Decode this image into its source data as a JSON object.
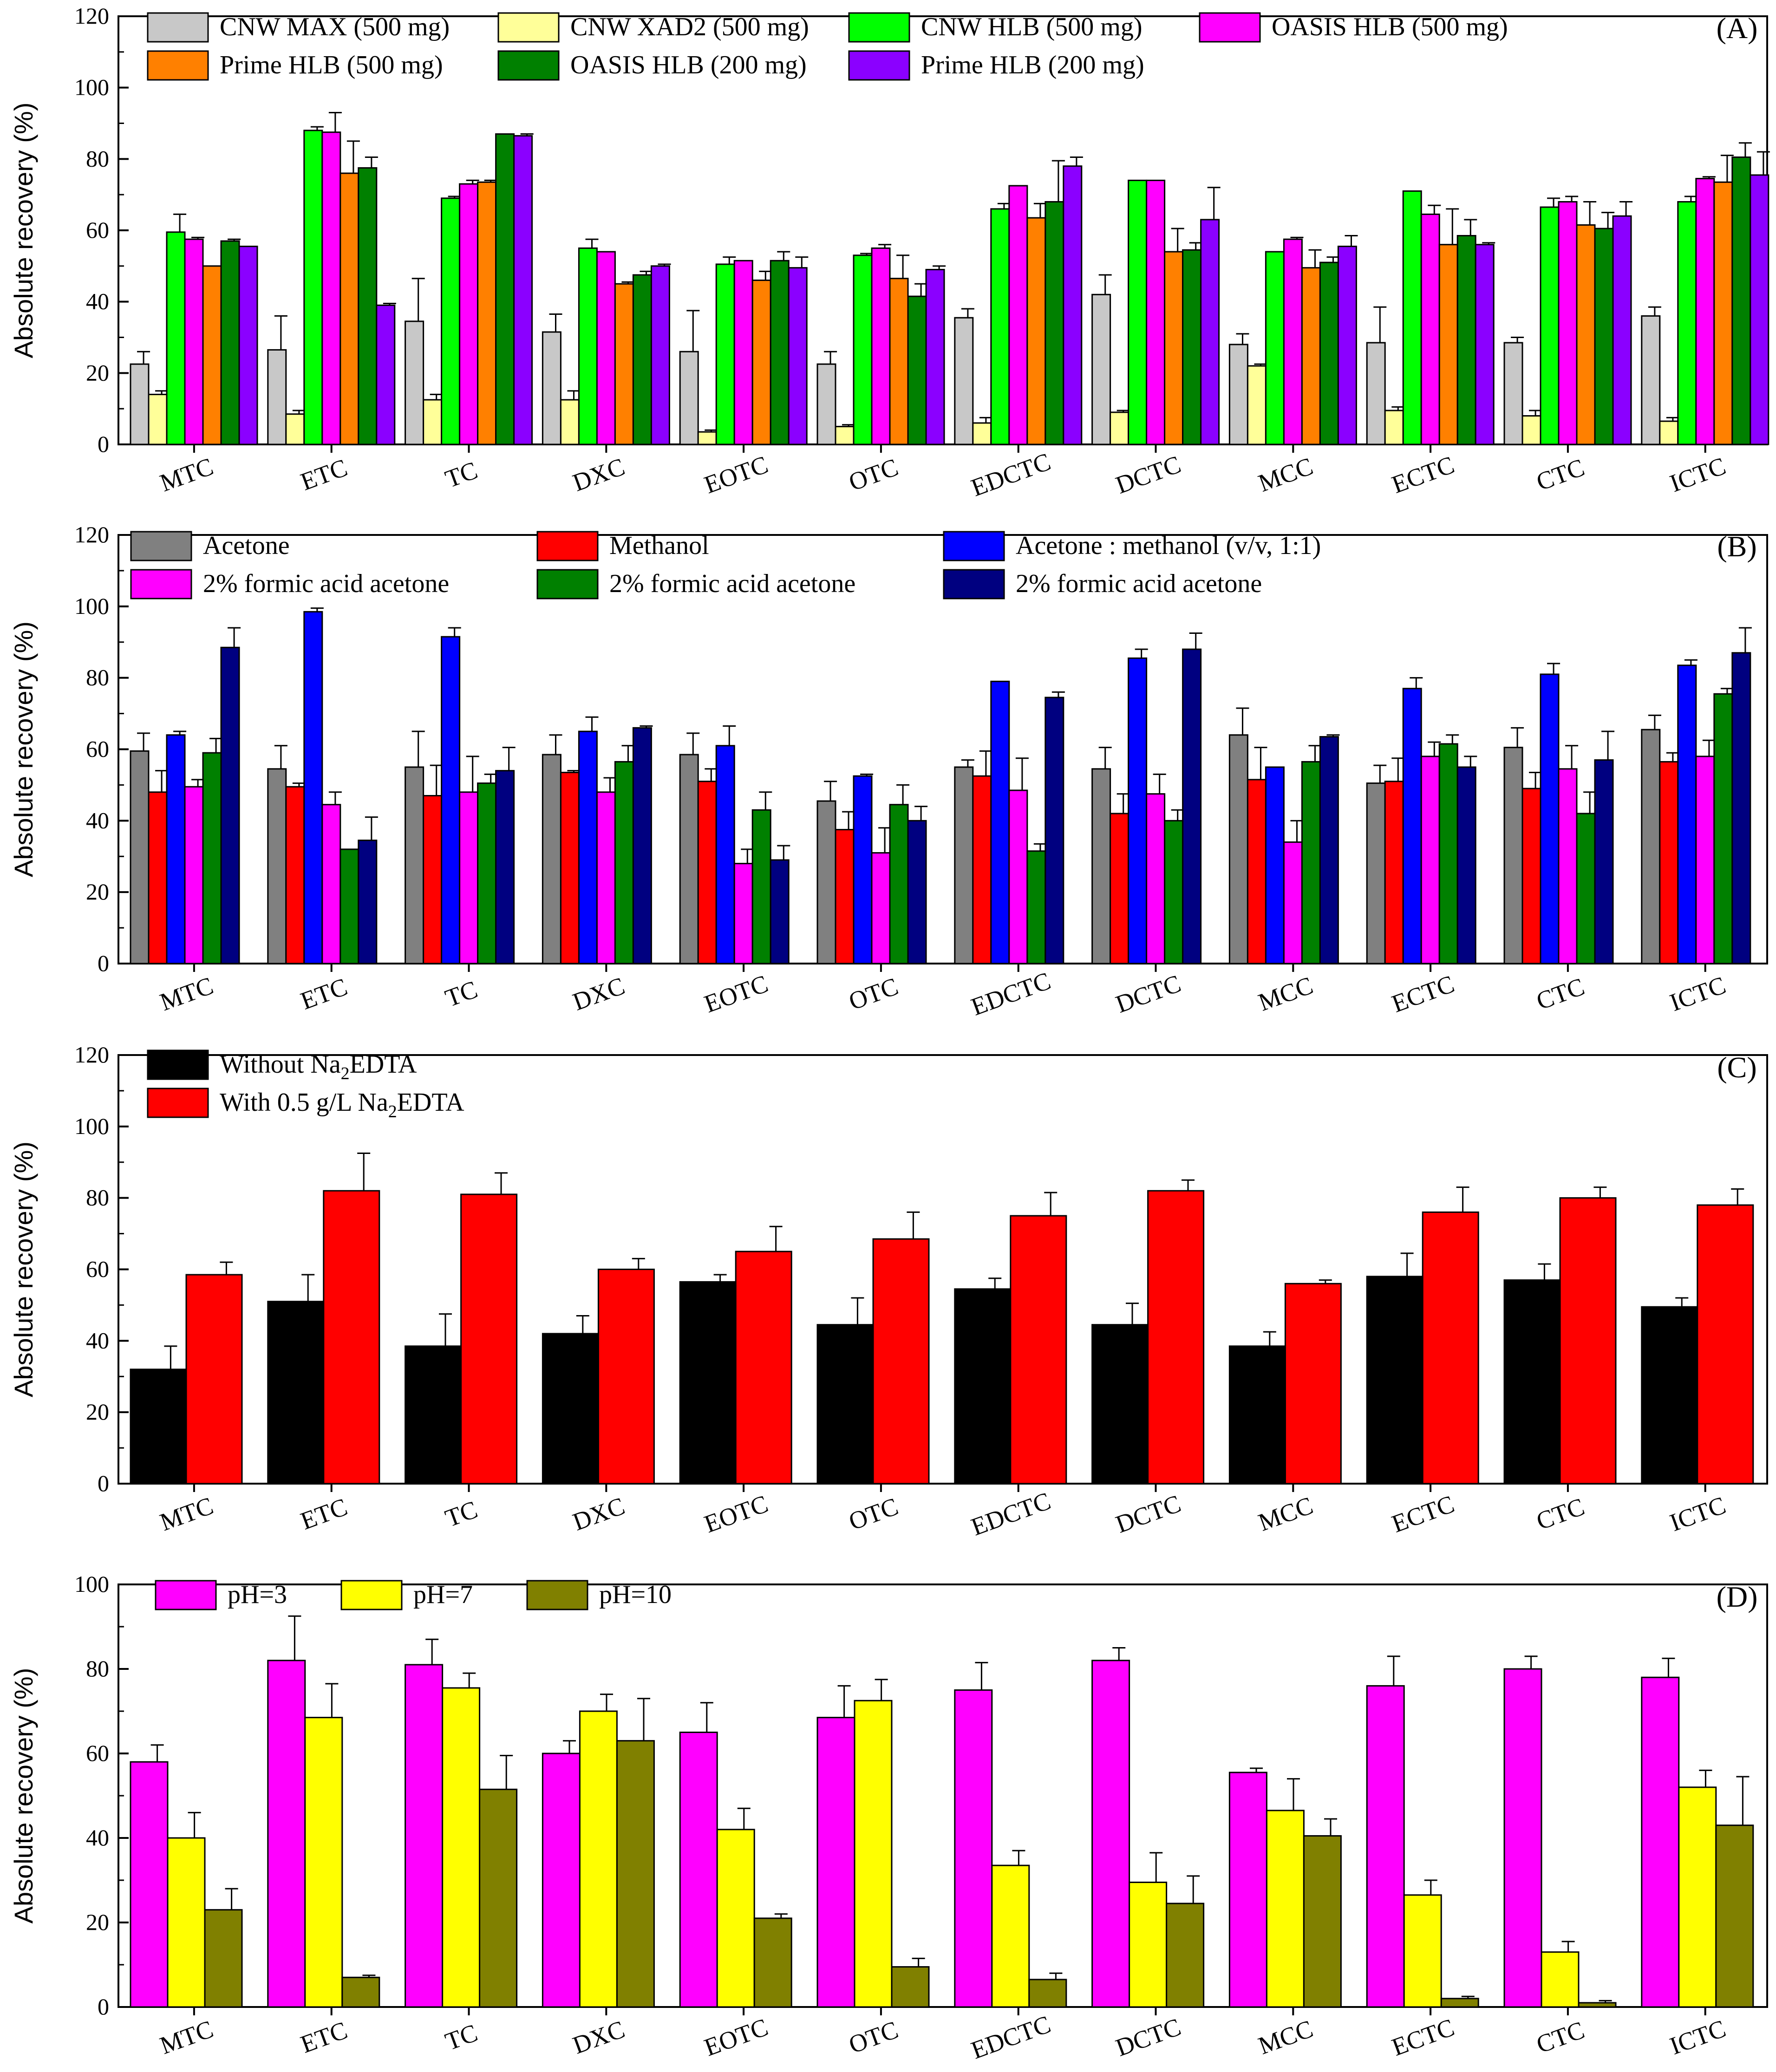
{
  "chart_data": [
    {
      "type": "bar",
      "panel_label": "(A)",
      "ylabel": "Absolute recovery (%)",
      "ylim": [
        0,
        120
      ],
      "yticks": [
        0,
        20,
        40,
        60,
        80,
        100,
        120
      ],
      "categories": [
        "MTC",
        "ETC",
        "TC",
        "DXC",
        "EOTC",
        "OTC",
        "EDCTC",
        "DCTC",
        "MCC",
        "ECTC",
        "CTC",
        "ICTC"
      ],
      "legend": {
        "placement": "top",
        "columns": 4,
        "items": [
          {
            "text": "CNW MAX (500 mg)",
            "color": "#c8c8c8"
          },
          {
            "text": "CNW XAD2 (500 mg)",
            "color": "#ffff99"
          },
          {
            "text": "CNW HLB (500 mg)",
            "color": "#00ff00"
          },
          {
            "text": "OASIS HLB (500 mg)",
            "color": "#ff00ff"
          },
          {
            "text": "Prime HLB (500 mg)",
            "color": "#ff8000"
          },
          {
            "text": "OASIS HLB (200 mg)",
            "color": "#008000"
          },
          {
            "text": "Prime HLB (200 mg)",
            "color": "#8b00ff"
          }
        ]
      },
      "series": [
        {
          "name": "CNW MAX (500 mg)",
          "color": "#c8c8c8",
          "values": [
            22.5,
            26.5,
            34.5,
            31.5,
            26,
            22.5,
            35.5,
            42,
            28,
            28.5,
            28.5,
            36
          ],
          "errors": [
            3.5,
            9.5,
            12,
            5,
            11.5,
            3.5,
            2.5,
            5.5,
            3,
            10,
            1.5,
            2.5
          ]
        },
        {
          "name": "CNW XAD2 (500 mg)",
          "color": "#ffff99",
          "values": [
            14,
            8.5,
            12.5,
            12.5,
            3.5,
            5,
            6,
            9,
            22,
            9.5,
            8,
            6.5
          ],
          "errors": [
            1,
            1,
            1.5,
            2.5,
            0.5,
            0.5,
            1.5,
            0.5,
            0.5,
            1,
            1.5,
            1
          ]
        },
        {
          "name": "CNW HLB (500 mg)",
          "color": "#00ff00",
          "values": [
            59.5,
            88,
            69,
            55,
            50.5,
            53,
            66,
            74,
            54,
            71,
            66.5,
            68
          ],
          "errors": [
            5,
            1,
            0.5,
            2.5,
            2,
            0.5,
            1.5,
            0,
            0,
            0,
            2.5,
            1.5
          ]
        },
        {
          "name": "OASIS HLB (500 mg)",
          "color": "#ff00ff",
          "values": [
            57.5,
            87.5,
            73,
            54,
            51.5,
            55,
            72.5,
            74,
            57.5,
            64.5,
            68,
            74.5
          ],
          "errors": [
            0.5,
            5.5,
            1,
            0,
            0,
            1,
            0,
            0,
            0.5,
            2.5,
            1.5,
            0.5
          ]
        },
        {
          "name": "Prime HLB (500 mg)",
          "color": "#ff8000",
          "values": [
            50,
            76,
            73.5,
            45,
            46,
            46.5,
            63.5,
            54,
            49.5,
            56,
            61.5,
            73.5
          ],
          "errors": [
            0,
            9,
            0.5,
            0.5,
            2.5,
            6.5,
            4,
            6.5,
            5,
            10,
            6.5,
            7.5
          ]
        },
        {
          "name": "OASIS HLB (200 mg)",
          "color": "#008000",
          "values": [
            57,
            77.5,
            87,
            47.5,
            51.5,
            41.5,
            68,
            54.5,
            51,
            58.5,
            60.5,
            80.5
          ],
          "errors": [
            0.5,
            3,
            0,
            1,
            2.5,
            3.5,
            11.5,
            2,
            1.5,
            4.5,
            4.5,
            4
          ]
        },
        {
          "name": "Prime HLB (200 mg)",
          "color": "#8b00ff",
          "values": [
            55.5,
            39,
            86.5,
            50,
            49.5,
            49,
            78,
            63,
            55.5,
            56,
            64,
            75.5
          ],
          "errors": [
            0,
            0.5,
            0.5,
            0.5,
            3,
            1,
            2.5,
            9,
            3,
            0.5,
            4,
            6.5
          ]
        }
      ]
    },
    {
      "type": "bar",
      "panel_label": "(B)",
      "ylabel": "Absolute recovery (%)",
      "ylim": [
        0,
        120
      ],
      "yticks": [
        0,
        20,
        40,
        60,
        80,
        100,
        120
      ],
      "categories": [
        "MTC",
        "ETC",
        "TC",
        "DXC",
        "EOTC",
        "OTC",
        "EDCTC",
        "DCTC",
        "MCC",
        "ECTC",
        "CTC",
        "ICTC"
      ],
      "legend": {
        "placement": "top",
        "columns": 3,
        "items": [
          {
            "text": "Acetone",
            "color": "#808080"
          },
          {
            "text": "Methanol",
            "color": "#ff0000"
          },
          {
            "text": "Acetone : methanol (v/v, 1:1)",
            "color": "#0000ff"
          },
          {
            "text": "2% formic acid acetone",
            "color": "#ff00ff"
          },
          {
            "text": "2% formic acid acetone",
            "color": "#008000"
          },
          {
            "text": "2% formic acid acetone",
            "color": "#000080"
          }
        ]
      },
      "series": [
        {
          "name": "Acetone",
          "color": "#808080",
          "values": [
            59.5,
            54.5,
            55,
            58.5,
            58.5,
            45.5,
            55,
            54.5,
            64,
            50.5,
            60.5,
            65.5
          ],
          "errors": [
            5,
            6.5,
            10,
            5.5,
            6,
            5.5,
            2,
            6,
            7.5,
            5,
            5.5,
            4
          ]
        },
        {
          "name": "Methanol",
          "color": "#ff0000",
          "values": [
            48,
            49.5,
            47,
            53.5,
            51,
            37.5,
            52.5,
            42,
            51.5,
            51,
            49,
            56.5
          ],
          "errors": [
            6,
            1,
            8.5,
            0.5,
            3.5,
            5,
            7,
            5.5,
            9,
            6.5,
            4.5,
            2.5
          ]
        },
        {
          "name": "Acetone : methanol (v/v, 1:1)",
          "color": "#0000ff",
          "values": [
            64,
            98.5,
            91.5,
            65,
            61,
            52.5,
            79,
            85.5,
            55,
            77,
            81,
            83.5
          ],
          "errors": [
            1,
            1,
            2.5,
            4,
            5.5,
            0.5,
            0,
            2.5,
            0,
            3,
            3,
            1.5
          ]
        },
        {
          "name": "2% formic acid acetone",
          "color": "#ff00ff",
          "values": [
            49.5,
            44.5,
            48,
            48,
            28,
            31,
            48.5,
            47.5,
            34,
            58,
            54.5,
            58
          ],
          "errors": [
            2,
            3.5,
            10,
            4,
            4,
            7,
            9,
            5.5,
            6,
            4,
            6.5,
            4.5
          ]
        },
        {
          "name": "2% formic acid acetone",
          "color": "#008000",
          "values": [
            59,
            32,
            50.5,
            56.5,
            43,
            44.5,
            31.5,
            40,
            56.5,
            61.5,
            42,
            75.5
          ],
          "errors": [
            4,
            0,
            2.5,
            4.5,
            5,
            5.5,
            2,
            3,
            4.5,
            2.5,
            6,
            1.5
          ]
        },
        {
          "name": "2% formic acid acetone",
          "color": "#000080",
          "values": [
            88.5,
            34.5,
            54,
            66,
            29,
            40,
            74.5,
            88,
            63.5,
            55,
            57,
            87
          ],
          "errors": [
            5.5,
            6.5,
            6.5,
            0.5,
            4,
            4,
            1.5,
            4.5,
            0.5,
            3,
            8,
            7
          ]
        }
      ]
    },
    {
      "type": "bar",
      "panel_label": "(C)",
      "ylabel": "Absolute recovery (%)",
      "ylim": [
        0,
        120
      ],
      "yticks": [
        0,
        20,
        40,
        60,
        80,
        100,
        120
      ],
      "categories": [
        "MTC",
        "ETC",
        "TC",
        "DXC",
        "EOTC",
        "OTC",
        "EDCTC",
        "DCTC",
        "MCC",
        "ECTC",
        "CTC",
        "ICTC"
      ],
      "legend": {
        "placement": "top-left",
        "columns": 1,
        "items": [
          {
            "text_pre": "Without Na",
            "text_sub": "2",
            "text_post": "EDTA",
            "color": "#000000"
          },
          {
            "text_pre": "With 0.5 g/L Na",
            "text_sub": "2",
            "text_post": "EDTA",
            "color": "#ff0000"
          }
        ]
      },
      "series": [
        {
          "name": "Without Na2EDTA",
          "color": "#000000",
          "values": [
            32,
            51,
            38.5,
            42,
            56.5,
            44.5,
            54.5,
            44.5,
            38.5,
            58,
            57,
            49.5
          ],
          "errors": [
            6.5,
            7.5,
            9,
            5,
            2,
            7.5,
            3,
            6,
            4,
            6.5,
            4.5,
            2.5
          ]
        },
        {
          "name": "With 0.5 g/L Na2EDTA",
          "color": "#ff0000",
          "values": [
            58.5,
            82,
            81,
            60,
            65,
            68.5,
            75,
            82,
            56,
            76,
            80,
            78
          ],
          "errors": [
            3.5,
            10.5,
            6,
            3,
            7,
            7.5,
            6.5,
            3,
            1,
            7,
            3,
            4.5
          ]
        }
      ]
    },
    {
      "type": "bar",
      "panel_label": "(D)",
      "ylabel": "Absolute recovery (%)",
      "ylim": [
        0,
        100
      ],
      "yticks": [
        0,
        20,
        40,
        60,
        80,
        100
      ],
      "categories": [
        "MTC",
        "ETC",
        "TC",
        "DXC",
        "EOTC",
        "OTC",
        "EDCTC",
        "DCTC",
        "MCC",
        "ECTC",
        "CTC",
        "ICTC"
      ],
      "legend": {
        "placement": "top-left",
        "columns": 3,
        "items": [
          {
            "text": "pH=3",
            "color": "#ff00ff"
          },
          {
            "text": "pH=7",
            "color": "#ffff00"
          },
          {
            "text": "pH=10",
            "color": "#808000"
          }
        ]
      },
      "series": [
        {
          "name": "pH=3",
          "color": "#ff00ff",
          "values": [
            58,
            82,
            81,
            60,
            65,
            68.5,
            75,
            82,
            55.5,
            76,
            80,
            78
          ],
          "errors": [
            4,
            10.5,
            6,
            3,
            7,
            7.5,
            6.5,
            3,
            1,
            7,
            3,
            4.5
          ]
        },
        {
          "name": "pH=7",
          "color": "#ffff00",
          "values": [
            40,
            68.5,
            75.5,
            70,
            42,
            72.5,
            33.5,
            29.5,
            46.5,
            26.5,
            13,
            52
          ],
          "errors": [
            6,
            8,
            3.5,
            4,
            5,
            5,
            3.5,
            7,
            7.5,
            3.5,
            2.5,
            4
          ]
        },
        {
          "name": "pH=10",
          "color": "#808000",
          "values": [
            23,
            7,
            51.5,
            63,
            21,
            9.5,
            6.5,
            24.5,
            40.5,
            2,
            1,
            43
          ],
          "errors": [
            5,
            0.5,
            8,
            10,
            1,
            2,
            1.5,
            6.5,
            4,
            0.5,
            0.5,
            11.5
          ]
        }
      ]
    }
  ]
}
